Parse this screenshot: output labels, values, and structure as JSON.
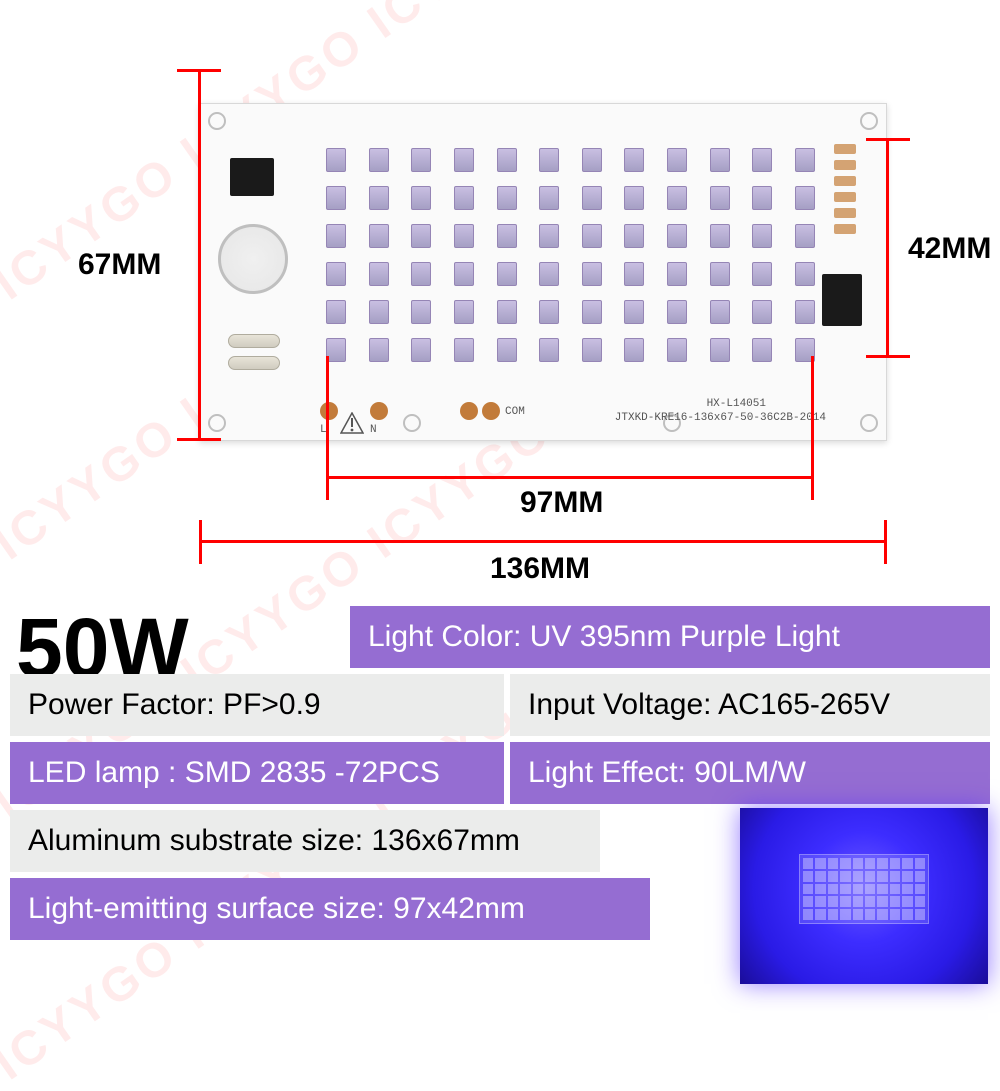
{
  "watermark": "ICYYGO ICYYGO ICYYGO",
  "pcb": {
    "silkscreen_line1": "HX-L14051",
    "silkscreen_line2": "JTXKD-KRE16-136x67-50-36C2B-2014",
    "com_label": "COM",
    "l_label": "L",
    "n_label": "N",
    "led_rows": 6,
    "led_cols": 12
  },
  "dimensions": {
    "height_label": "67MM",
    "inner_height_label": "42MM",
    "inner_width_label": "97MM",
    "width_label": "136MM",
    "line_color": "#ff0000",
    "label_fontsize": 30
  },
  "wattage": "50W",
  "specs": {
    "light_color": "Light Color: UV 395nm Purple Light",
    "power_factor": "Power Factor: PF>0.9",
    "input_voltage": "Input Voltage: AC165-265V",
    "led_lamp": "LED lamp : SMD 2835 -72PCS",
    "light_effect": "Light Effect: 90LM/W",
    "substrate_size": "Aluminum substrate size: 136x67mm",
    "emitting_size": "Light-emitting surface size: 97x42mm"
  },
  "colors": {
    "purple_row": "#956dd2",
    "grey_row": "#ebeceb",
    "dimension": "#ff0000",
    "pcb_bg": "#fafafa",
    "led_color": "#a59fc4"
  }
}
